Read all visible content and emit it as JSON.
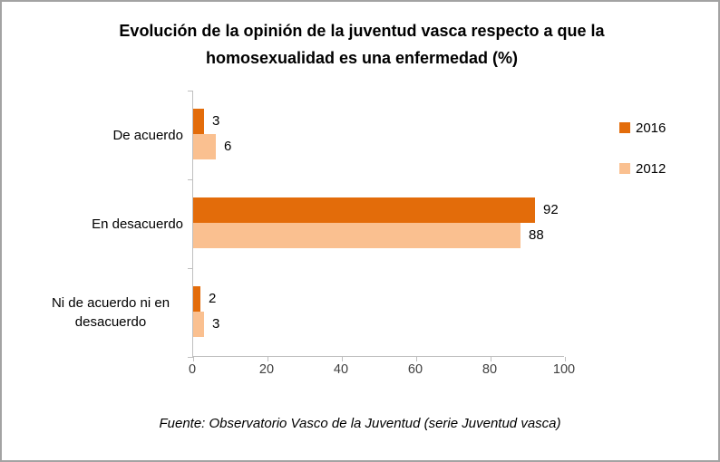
{
  "title": "Evolución de la opinión de la juventud vasca respecto a que la homosexualidad es una enfermedad (%)",
  "source_note": "Fuente: Observatorio Vasco de la Juventud (serie Juventud vasca)",
  "colors": {
    "series_2016": "#e36c0a",
    "series_2012": "#fac090",
    "axis_line": "#bfbfbf",
    "tick_text": "#404040",
    "frame_border": "#a3a3a3",
    "text": "#000000"
  },
  "legend": {
    "position": "right",
    "items": [
      {
        "label": "2016",
        "color": "#e36c0a"
      },
      {
        "label": "2012",
        "color": "#fac090"
      }
    ]
  },
  "chart_data": {
    "type": "bar",
    "orientation": "horizontal",
    "title": "Evolución de la opinión de la juventud vasca respecto a que la homosexualidad es una enfermedad (%)",
    "categories": [
      "De acuerdo",
      "En desacuerdo",
      "Ni de acuerdo ni en desacuerdo"
    ],
    "series": [
      {
        "name": "2016",
        "color": "#e36c0a",
        "values": [
          3,
          92,
          2
        ]
      },
      {
        "name": "2012",
        "color": "#fac090",
        "values": [
          6,
          88,
          3
        ]
      }
    ],
    "xlabel": "",
    "ylabel": "",
    "xlim": [
      0,
      100
    ],
    "xticks": [
      0,
      20,
      40,
      60,
      80,
      100
    ],
    "grid": false,
    "data_labels": true,
    "legend_position": "right"
  }
}
